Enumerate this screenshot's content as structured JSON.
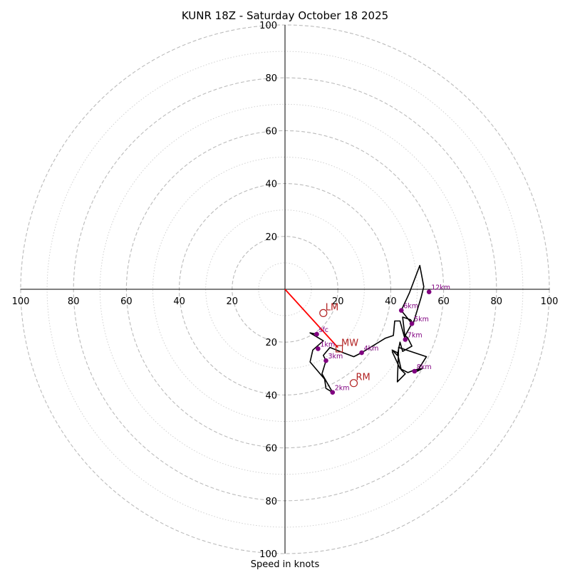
{
  "chart_data": {
    "type": "hodograph",
    "title": "KUNR 18Z - Saturday October 18 2025",
    "xlabel": "Speed in knots",
    "ring_max": 100,
    "ring_major_step": 20,
    "ring_minor_step": 10,
    "tick_labels": {
      "left": [
        "100",
        "80",
        "60",
        "40",
        "20"
      ],
      "right": [
        "20",
        "40",
        "60",
        "80",
        "100"
      ],
      "up": [
        "20",
        "40",
        "60",
        "80",
        "100"
      ],
      "down": [
        "20",
        "40",
        "60",
        "80",
        "100"
      ]
    },
    "trace": [
      [
        12,
        -17
      ],
      [
        9.5,
        -16.5
      ],
      [
        14.5,
        -19.5
      ],
      [
        10.5,
        -23
      ],
      [
        9.5,
        -27.5
      ],
      [
        15,
        -34
      ],
      [
        15.5,
        -37.5
      ],
      [
        18,
        -39
      ],
      [
        14,
        -32
      ],
      [
        15.5,
        -27
      ],
      [
        14.5,
        -25
      ],
      [
        17,
        -22
      ],
      [
        22,
        -24
      ],
      [
        26,
        -25.5
      ],
      [
        29,
        -24
      ],
      [
        38,
        -18.5
      ],
      [
        41,
        -17.5
      ],
      [
        41.5,
        -12
      ],
      [
        43.5,
        -12
      ],
      [
        45,
        -17.5
      ],
      [
        45.5,
        -19
      ],
      [
        44.5,
        -10.5
      ],
      [
        47.5,
        -11.5
      ],
      [
        48.5,
        -13
      ],
      [
        50,
        -8
      ],
      [
        51.5,
        -3
      ],
      [
        52.5,
        1
      ],
      [
        51,
        9
      ],
      [
        47,
        -1.5
      ],
      [
        44,
        -8
      ],
      [
        48,
        -13
      ],
      [
        45.5,
        -17.5
      ],
      [
        46.5,
        -18.5
      ],
      [
        48,
        -21.5
      ],
      [
        44.5,
        -23.5
      ],
      [
        43.5,
        -20
      ],
      [
        42.5,
        -25
      ],
      [
        40.5,
        -23
      ],
      [
        42.5,
        -24
      ],
      [
        44,
        -30.5
      ],
      [
        45.5,
        -32
      ],
      [
        42.5,
        -35
      ],
      [
        43,
        -22
      ],
      [
        53.5,
        -25.5
      ],
      [
        50,
        -31
      ],
      [
        52,
        -30
      ],
      [
        49,
        -30.5
      ],
      [
        46.5,
        -31.5
      ],
      [
        43.5,
        -30
      ],
      [
        40.5,
        -23.5
      ]
    ],
    "height_markers": [
      {
        "label": "sfc",
        "u": 12,
        "v": -17
      },
      {
        "label": "1km",
        "u": 12.5,
        "v": -22.5
      },
      {
        "label": "3km",
        "u": 15.5,
        "v": -27
      },
      {
        "label": "2km",
        "u": 18,
        "v": -39
      },
      {
        "label": "4km",
        "u": 29,
        "v": -24
      },
      {
        "label": "5km",
        "u": 48,
        "v": -13
      },
      {
        "label": "6km",
        "u": 44,
        "v": -8
      },
      {
        "label": "7km",
        "u": 45.5,
        "v": -19
      },
      {
        "label": "8km",
        "u": 49,
        "v": -31
      },
      {
        "label": "12km",
        "u": 54.5,
        "v": -1
      }
    ],
    "storm_motions": [
      {
        "label": "LM",
        "u": 14.5,
        "v": -9,
        "marker": "circle"
      },
      {
        "label": "RM",
        "u": 26,
        "v": -35.5,
        "marker": "circle"
      },
      {
        "label": "MW",
        "u": 20.5,
        "v": -22.5,
        "marker": "square"
      }
    ],
    "motion_vector": {
      "from": [
        0,
        0
      ],
      "to": [
        20,
        -22
      ]
    },
    "colors": {
      "trace": "#000000",
      "height_marker": "#800080",
      "storm_motion": "#b22222",
      "vector": "#ff0000",
      "ring_major": "#bbbbbb",
      "ring_minor": "#cccccc"
    }
  }
}
